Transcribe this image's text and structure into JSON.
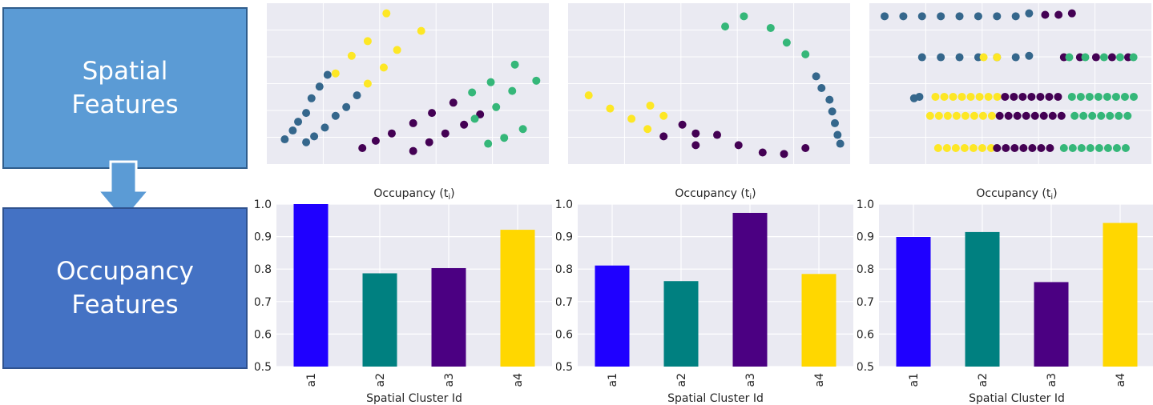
{
  "labels": {
    "spatial": "Spatial\nFeatures",
    "occupancy": "Occupancy\nFeatures"
  },
  "colors": {
    "box_spatial": "#5b9bd5",
    "box_occupancy": "#4472c4",
    "plot_bg": "#eaeaf2",
    "a1": "#1f00ff",
    "a2": "#008080",
    "a3": "#4b0082",
    "a4": "#ffd700",
    "dot_blue": "#35678c",
    "dot_yellow": "#fde725",
    "dot_purple": "#440154",
    "dot_green": "#35b779"
  },
  "chart_data": [
    {
      "type": "scatter",
      "grid": true,
      "xlim": [
        0,
        100
      ],
      "ylim": [
        0,
        100
      ],
      "series": [
        {
          "color": "blue",
          "points": [
            [
              4,
              12
            ],
            [
              7,
              18
            ],
            [
              9,
              24
            ],
            [
              12,
              30
            ],
            [
              14,
              40
            ],
            [
              17,
              48
            ],
            [
              20,
              56
            ],
            [
              12,
              10
            ],
            [
              15,
              14
            ],
            [
              19,
              20
            ],
            [
              23,
              28
            ],
            [
              27,
              34
            ],
            [
              31,
              42
            ]
          ]
        },
        {
          "color": "yellow",
          "points": [
            [
              23,
              57
            ],
            [
              29,
              69
            ],
            [
              35,
              79
            ],
            [
              42,
              98
            ],
            [
              35,
              50
            ],
            [
              41,
              61
            ],
            [
              46,
              73
            ],
            [
              55,
              86
            ]
          ]
        },
        {
          "color": "purple",
          "points": [
            [
              33,
              6
            ],
            [
              38,
              11
            ],
            [
              44,
              16
            ],
            [
              52,
              23
            ],
            [
              59,
              30
            ],
            [
              67,
              37
            ],
            [
              52,
              4
            ],
            [
              58,
              10
            ],
            [
              64,
              16
            ],
            [
              71,
              22
            ],
            [
              77,
              29
            ]
          ]
        },
        {
          "color": "green",
          "points": [
            [
              74,
              44
            ],
            [
              81,
              51
            ],
            [
              90,
              63
            ],
            [
              98,
              52
            ],
            [
              75,
              26
            ],
            [
              83,
              34
            ],
            [
              89,
              45
            ],
            [
              80,
              9
            ],
            [
              86,
              13
            ],
            [
              93,
              19
            ]
          ]
        }
      ]
    },
    {
      "type": "scatter",
      "grid": true,
      "xlim": [
        0,
        100
      ],
      "ylim": [
        0,
        100
      ],
      "series": [
        {
          "color": "yellow",
          "points": [
            [
              5,
              42
            ],
            [
              13,
              33
            ],
            [
              21,
              26
            ],
            [
              28,
              35
            ],
            [
              33,
              28
            ],
            [
              27,
              19
            ]
          ]
        },
        {
          "color": "purple",
          "points": [
            [
              33,
              14
            ],
            [
              40,
              22
            ],
            [
              45,
              8
            ],
            [
              45,
              16
            ],
            [
              53,
              15
            ],
            [
              61,
              8
            ],
            [
              70,
              3
            ],
            [
              78,
              2
            ],
            [
              86,
              6
            ]
          ]
        },
        {
          "color": "green",
          "points": [
            [
              56,
              89
            ],
            [
              63,
              96
            ],
            [
              73,
              88
            ],
            [
              79,
              78
            ],
            [
              86,
              70
            ]
          ]
        },
        {
          "color": "blue",
          "points": [
            [
              90,
              55
            ],
            [
              92,
              47
            ],
            [
              95,
              39
            ],
            [
              96,
              31
            ],
            [
              97,
              23
            ],
            [
              98,
              15
            ],
            [
              99,
              9
            ]
          ]
        }
      ]
    },
    {
      "type": "scatter",
      "grid": true,
      "xlim": [
        0,
        100
      ],
      "ylim": [
        0,
        100
      ],
      "series": [
        {
          "color": "blue",
          "points": [
            [
              3,
              96
            ],
            [
              10,
              96
            ],
            [
              17,
              96
            ],
            [
              24,
              96
            ],
            [
              31,
              96
            ],
            [
              38,
              96
            ],
            [
              45,
              96
            ],
            [
              52,
              96
            ],
            [
              57,
              98
            ],
            [
              17,
              68
            ],
            [
              24,
              68
            ],
            [
              31,
              68
            ],
            [
              38,
              68
            ],
            [
              45,
              68
            ],
            [
              52,
              68
            ],
            [
              57,
              69
            ],
            [
              14,
              40
            ],
            [
              16,
              41
            ]
          ]
        },
        {
          "color": "purple",
          "points": [
            [
              63,
              97
            ],
            [
              68,
              97
            ],
            [
              73,
              98
            ],
            [
              70,
              68
            ],
            [
              76,
              68
            ],
            [
              82,
              68
            ],
            [
              88,
              68
            ],
            [
              94,
              68
            ]
          ]
        },
        {
          "color": "yellow",
          "points": [
            [
              40,
              68
            ],
            [
              45,
              68
            ]
          ]
        },
        {
          "color": "green",
          "points": [
            [
              96,
              68
            ]
          ]
        }
      ]
    },
    {
      "type": "bar",
      "title": "Occupancy (t",
      "title_sub": "i",
      "title_end": ")",
      "xlabel": "Spatial Cluster Id",
      "ylim": [
        0.5,
        1.0
      ],
      "yticks": [
        "0.5",
        "0.6",
        "0.7",
        "0.8",
        "0.9",
        "1.0"
      ],
      "categories": [
        "a1",
        "a2",
        "a3",
        "a4"
      ],
      "values": [
        1.0,
        0.787,
        0.803,
        0.921
      ]
    },
    {
      "type": "bar",
      "title": "Occupancy (t",
      "title_sub": "i",
      "title_end": ")",
      "xlabel": "Spatial Cluster Id",
      "ylim": [
        0.5,
        1.0
      ],
      "yticks": [
        "0.5",
        "0.6",
        "0.7",
        "0.8",
        "0.9",
        "1.0"
      ],
      "categories": [
        "a1",
        "a2",
        "a3",
        "a4"
      ],
      "values": [
        0.811,
        0.763,
        0.973,
        0.785
      ]
    },
    {
      "type": "bar",
      "title": "Occupancy (t",
      "title_sub": "i",
      "title_end": ")",
      "xlabel": "Spatial Cluster Id",
      "ylim": [
        0.5,
        1.0
      ],
      "yticks": [
        "0.5",
        "0.6",
        "0.7",
        "0.8",
        "0.9",
        "1.0"
      ],
      "categories": [
        "a1",
        "a2",
        "a3",
        "a4"
      ],
      "values": [
        0.899,
        0.914,
        0.76,
        0.942
      ]
    }
  ]
}
